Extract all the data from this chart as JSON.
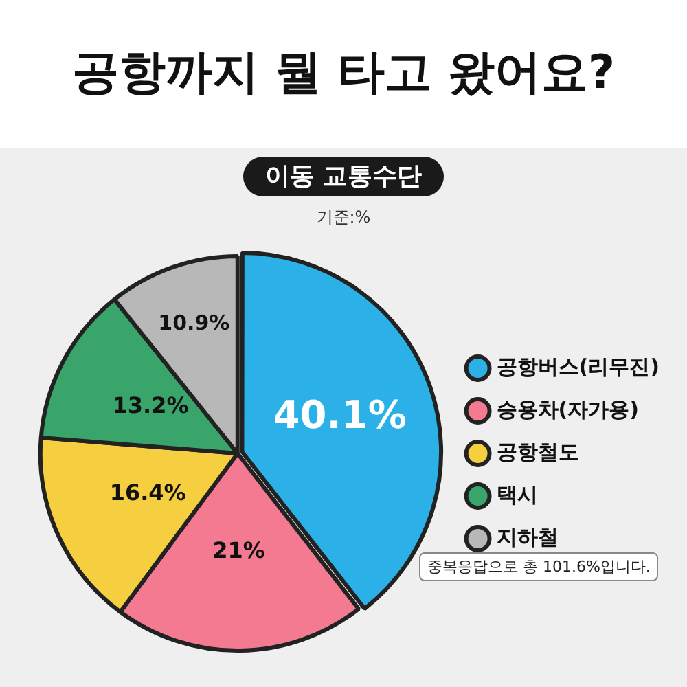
{
  "chart_data": {
    "type": "pie",
    "title": "공항까지 뭘 타고 왔어요?",
    "subtitle": "이동 교통수단",
    "categories": [
      "공항버스(리무진)",
      "승용차(자가용)",
      "공항철도",
      "택시",
      "지하철"
    ],
    "values": [
      40.1,
      21,
      16.4,
      13.2,
      10.9
    ],
    "colors": [
      "#2bb0e8",
      "#f47a92",
      "#f5cf3f",
      "#3aa56a",
      "#b8b8b8"
    ],
    "value_labels": [
      "40.1%",
      "21%",
      "16.4%",
      "13.2%",
      "10.9%"
    ],
    "legend": "right",
    "annotations": [
      "기준:%",
      "중복응답으로 총 101.6%입니다."
    ]
  }
}
